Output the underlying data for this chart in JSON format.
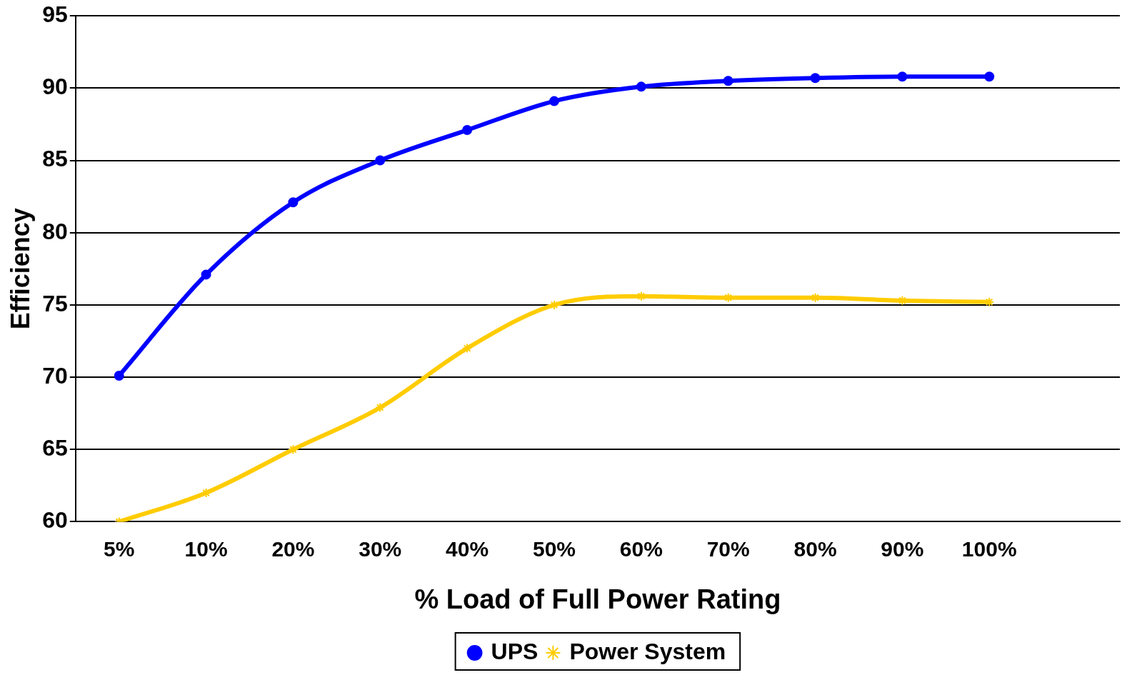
{
  "chart_data": {
    "type": "line",
    "xlabel": "% Load of Full Power Rating",
    "ylabel": "Efficiency",
    "categories": [
      "5%",
      "10%",
      "20%",
      "30%",
      "40%",
      "50%",
      "60%",
      "70%",
      "80%",
      "90%",
      "100%",
      null
    ],
    "series": [
      {
        "name": "UPS",
        "color": "#0000ff",
        "marker": "circle",
        "values": [
          70.1,
          77.1,
          82.1,
          85.0,
          87.1,
          89.1,
          90.1,
          90.5,
          90.7,
          90.8,
          90.8,
          null
        ]
      },
      {
        "name": "Power System",
        "color": "#ffcc00",
        "marker": "cross",
        "values": [
          60,
          62,
          65,
          67.9,
          72,
          75,
          75.6,
          75.5,
          75.5,
          75.3,
          75.2,
          null
        ]
      }
    ],
    "ylim": [
      60,
      95
    ],
    "yticks": [
      60,
      65,
      70,
      75,
      80,
      85,
      90,
      95
    ],
    "grid": "y",
    "legend": "bottom",
    "line_style": "solid"
  }
}
